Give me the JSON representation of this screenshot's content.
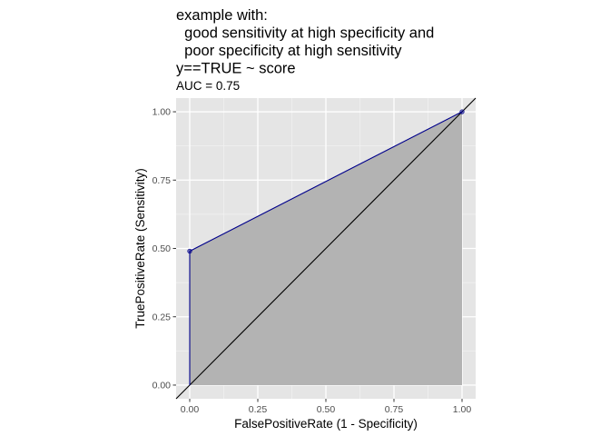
{
  "chart_data": {
    "type": "line",
    "title_lines": [
      "example with:",
      "  good sensitivity at high specificity and",
      "  poor specificity at high sensitivity",
      "y==TRUE ~ score"
    ],
    "subtitle": "AUC = 0.75",
    "xlabel": "FalsePositiveRate (1 - Specificity)",
    "ylabel": "TruePositiveRate (Sensitivity)",
    "xlim": [
      -0.05,
      1.05
    ],
    "ylim": [
      -0.05,
      1.05
    ],
    "x_ticks": [
      {
        "value": 0,
        "label": "0.00"
      },
      {
        "value": 0.25,
        "label": "0.25"
      },
      {
        "value": 0.5,
        "label": "0.50"
      },
      {
        "value": 0.75,
        "label": "0.75"
      },
      {
        "value": 1,
        "label": "1.00"
      }
    ],
    "y_ticks": [
      {
        "value": 0,
        "label": "0.00"
      },
      {
        "value": 0.25,
        "label": "0.25"
      },
      {
        "value": 0.5,
        "label": "0.50"
      },
      {
        "value": 0.75,
        "label": "0.75"
      },
      {
        "value": 1,
        "label": "1.00"
      }
    ],
    "grid": true,
    "series": [
      {
        "x": [
          0,
          0,
          1
        ],
        "y": [
          0,
          0.49,
          1
        ],
        "color": "#00008b",
        "markers": [
          [
            0,
            0.49
          ],
          [
            1,
            1
          ]
        ]
      }
    ],
    "reference_line": {
      "slope": 1,
      "intercept": 0,
      "color": "#000000"
    },
    "area_fill": "#b3b3b3",
    "panel_background": "#e5e5e5"
  }
}
